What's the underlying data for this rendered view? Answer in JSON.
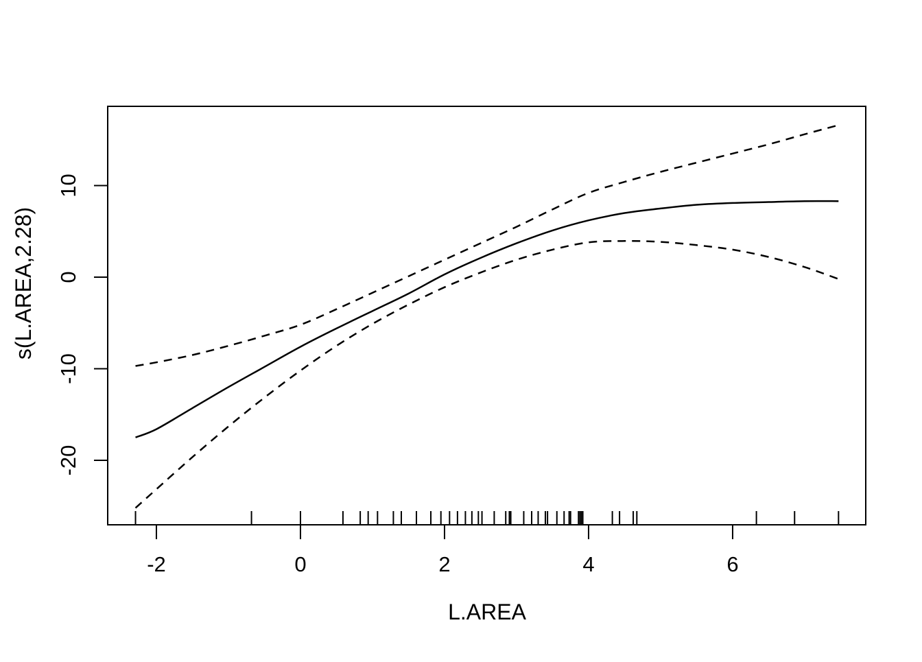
{
  "chart_data": {
    "type": "line",
    "title": "",
    "xlabel": "L.AREA",
    "ylabel": "s(L.AREA,2.28)",
    "x_range": [
      -2.676,
      7.848
    ],
    "y_range": [
      -27.04,
      18.65
    ],
    "x_ticks": [
      -2,
      0,
      2,
      4,
      6
    ],
    "y_ticks": [
      -20,
      -10,
      0,
      10
    ],
    "grid": false,
    "legend": "none",
    "colors": {
      "line": "#000000",
      "background": "#ffffff"
    },
    "series": [
      {
        "name": "fitted-smooth",
        "style": "solid",
        "points": [
          [
            -2.29,
            -17.5
          ],
          [
            -2.0,
            -16.6
          ],
          [
            -1.5,
            -14.3
          ],
          [
            -1.0,
            -12.0
          ],
          [
            -0.5,
            -9.8
          ],
          [
            0.0,
            -7.6
          ],
          [
            0.5,
            -5.6
          ],
          [
            1.0,
            -3.7
          ],
          [
            1.5,
            -1.8
          ],
          [
            2.0,
            0.3
          ],
          [
            2.5,
            2.1
          ],
          [
            3.0,
            3.7
          ],
          [
            3.5,
            5.1
          ],
          [
            4.0,
            6.2
          ],
          [
            4.5,
            7.0
          ],
          [
            5.0,
            7.5
          ],
          [
            5.5,
            7.9
          ],
          [
            6.0,
            8.1
          ],
          [
            6.5,
            8.2
          ],
          [
            7.0,
            8.3
          ],
          [
            7.47,
            8.3
          ]
        ]
      },
      {
        "name": "upper-confidence-band",
        "style": "dashed",
        "points": [
          [
            -2.29,
            -9.7
          ],
          [
            -2.0,
            -9.3
          ],
          [
            -1.5,
            -8.5
          ],
          [
            -1.0,
            -7.5
          ],
          [
            -0.5,
            -6.4
          ],
          [
            0.0,
            -5.2
          ],
          [
            0.5,
            -3.5
          ],
          [
            1.0,
            -1.7
          ],
          [
            1.5,
            0.1
          ],
          [
            2.0,
            1.9
          ],
          [
            2.5,
            3.7
          ],
          [
            3.0,
            5.5
          ],
          [
            3.5,
            7.4
          ],
          [
            4.0,
            9.2
          ],
          [
            4.5,
            10.4
          ],
          [
            5.0,
            11.5
          ],
          [
            5.5,
            12.5
          ],
          [
            6.0,
            13.5
          ],
          [
            6.5,
            14.5
          ],
          [
            7.0,
            15.6
          ],
          [
            7.47,
            16.6
          ]
        ]
      },
      {
        "name": "lower-confidence-band",
        "style": "dashed",
        "points": [
          [
            -2.29,
            -25.2
          ],
          [
            -2.0,
            -23.15
          ],
          [
            -1.5,
            -19.65
          ],
          [
            -1.0,
            -16.3
          ],
          [
            -0.5,
            -13.15
          ],
          [
            0.0,
            -10.2
          ],
          [
            0.5,
            -7.5
          ],
          [
            1.0,
            -5.1
          ],
          [
            1.5,
            -3.0
          ],
          [
            2.0,
            -1.1
          ],
          [
            2.5,
            0.5
          ],
          [
            3.0,
            1.9
          ],
          [
            3.5,
            3.0
          ],
          [
            4.0,
            3.8
          ],
          [
            4.5,
            3.95
          ],
          [
            5.0,
            3.85
          ],
          [
            5.5,
            3.5
          ],
          [
            6.0,
            3.0
          ],
          [
            6.5,
            2.2
          ],
          [
            7.0,
            1.1
          ],
          [
            7.47,
            -0.2
          ]
        ]
      }
    ],
    "rug_x": [
      -2.29,
      -0.68,
      0.0,
      0.59,
      0.83,
      0.94,
      1.07,
      1.29,
      1.4,
      1.61,
      1.81,
      1.95,
      2.07,
      2.18,
      2.29,
      2.38,
      2.47,
      2.52,
      2.69,
      2.85,
      2.9,
      2.92,
      3.1,
      3.21,
      3.3,
      3.4,
      3.43,
      3.56,
      3.66,
      3.73,
      3.75,
      3.86,
      3.88,
      3.9,
      3.92,
      4.33,
      4.43,
      4.62,
      4.67,
      6.33,
      6.86,
      7.47
    ]
  }
}
